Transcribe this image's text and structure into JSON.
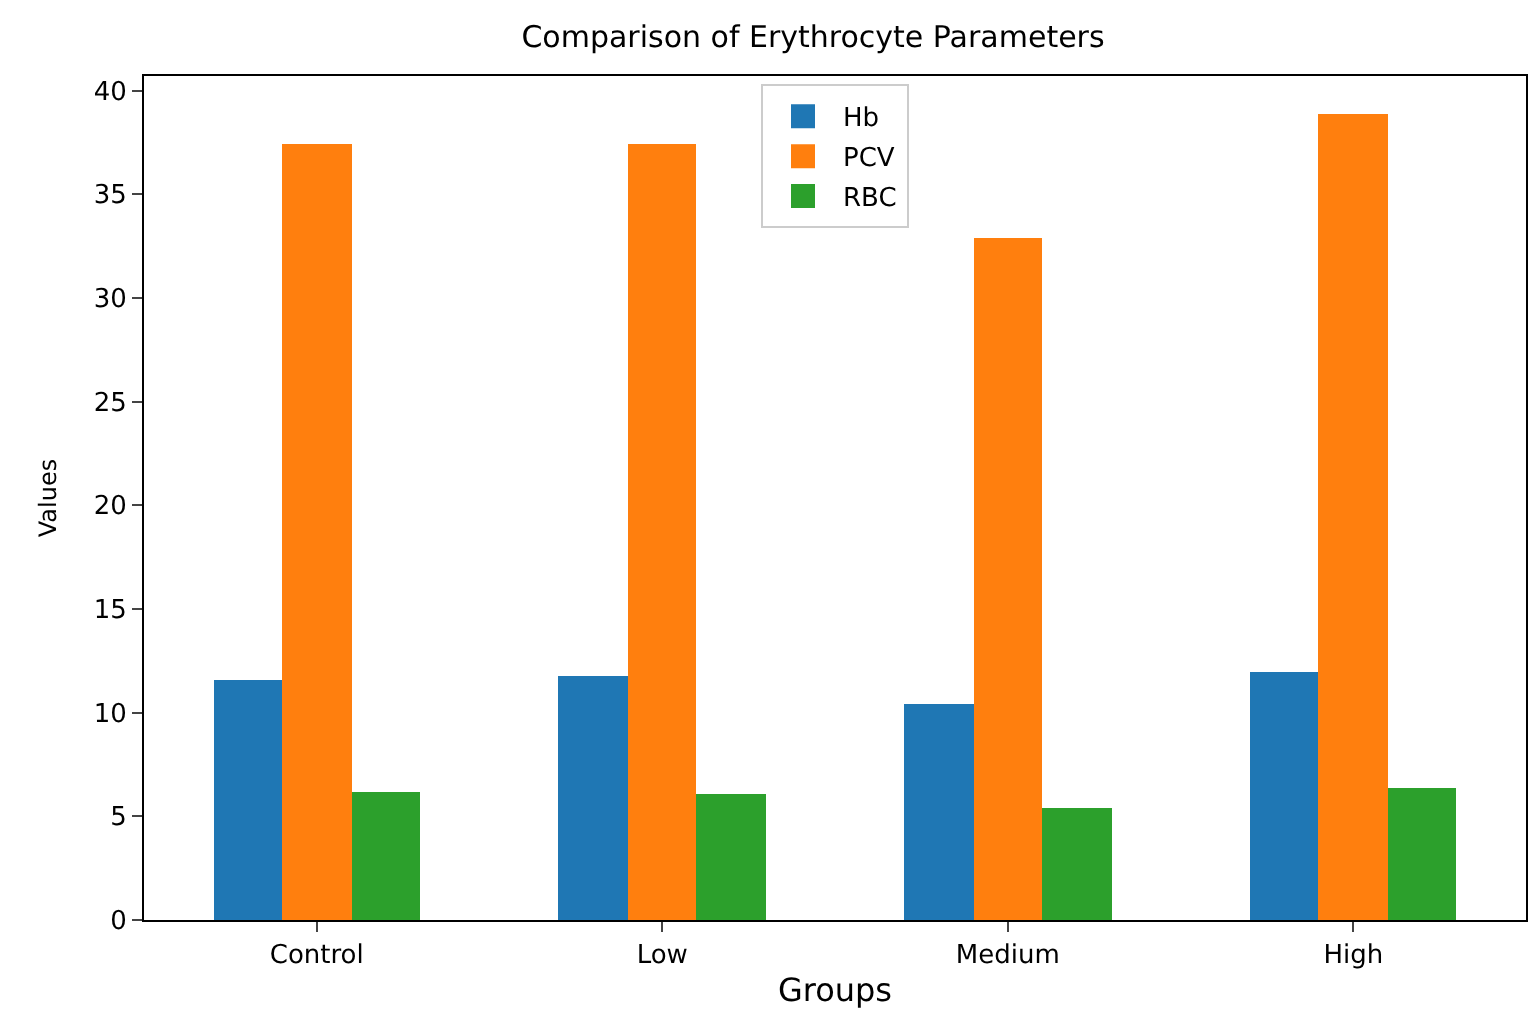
{
  "chart_data": {
    "type": "bar",
    "title": "Comparison of Erythrocyte Parameters",
    "xlabel": "Groups",
    "ylabel": "Values",
    "categories": [
      "Control",
      "Low",
      "Medium",
      "High"
    ],
    "series": [
      {
        "name": "Hb",
        "color": "#1f77b4",
        "values": [
          11.6,
          11.8,
          10.4,
          12.0
        ]
      },
      {
        "name": "PCV",
        "color": "#ff7f0e",
        "values": [
          37.4,
          37.4,
          32.9,
          38.9
        ]
      },
      {
        "name": "RBC",
        "color": "#2ca02c",
        "values": [
          6.15,
          6.05,
          5.4,
          6.35
        ]
      }
    ],
    "ylim": [
      0,
      40.7
    ],
    "yticks": [
      0,
      5,
      10,
      15,
      20,
      25,
      30,
      35,
      40
    ],
    "grid": false,
    "legend": "top"
  }
}
